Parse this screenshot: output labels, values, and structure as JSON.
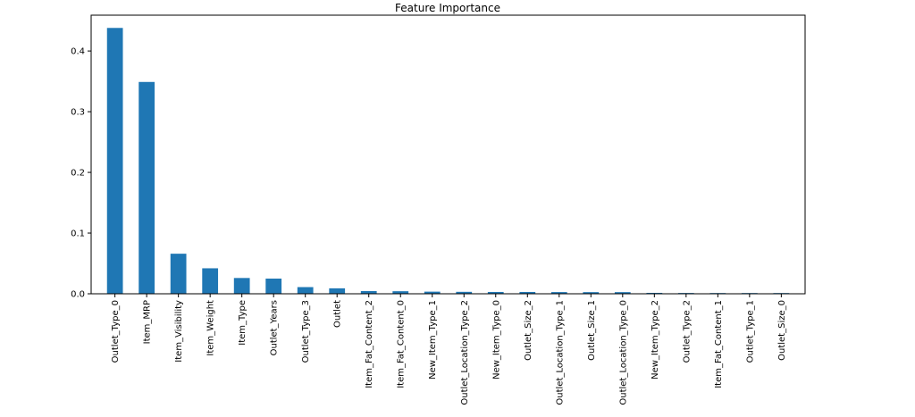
{
  "chart_data": {
    "type": "bar",
    "title": "Feature Importance",
    "xlabel": "",
    "ylabel": "",
    "categories": [
      "Outlet_Type_0",
      "Item_MRP",
      "Item_Visibility",
      "Item_Weight",
      "Item_Type",
      "Outlet_Years",
      "Outlet_Type_3",
      "Outlet",
      "Item_Fat_Content_2",
      "Item_Fat_Content_0",
      "New_Item_Type_1",
      "Outlet_Location_Type_2",
      "New_Item_Type_0",
      "Outlet_Size_2",
      "Outlet_Location_Type_1",
      "Outlet_Size_1",
      "Outlet_Location_Type_0",
      "New_Item_Type_2",
      "Outlet_Type_2",
      "Item_Fat_Content_1",
      "Outlet_Type_1",
      "Outlet_Size_0"
    ],
    "values": [
      0.438,
      0.349,
      0.066,
      0.042,
      0.026,
      0.025,
      0.011,
      0.009,
      0.0045,
      0.0042,
      0.0035,
      0.0032,
      0.003,
      0.003,
      0.0028,
      0.0027,
      0.0027,
      0.0015,
      0.0013,
      0.0012,
      0.0012,
      0.0012
    ],
    "yticks": [
      "0.0",
      "0.1",
      "0.2",
      "0.3",
      "0.4"
    ],
    "ytick_values": [
      0.0,
      0.1,
      0.2,
      0.3,
      0.4
    ],
    "ylim": [
      0,
      0.459
    ],
    "bar_color": "#1f77b4",
    "grid": false,
    "legend": "none"
  }
}
